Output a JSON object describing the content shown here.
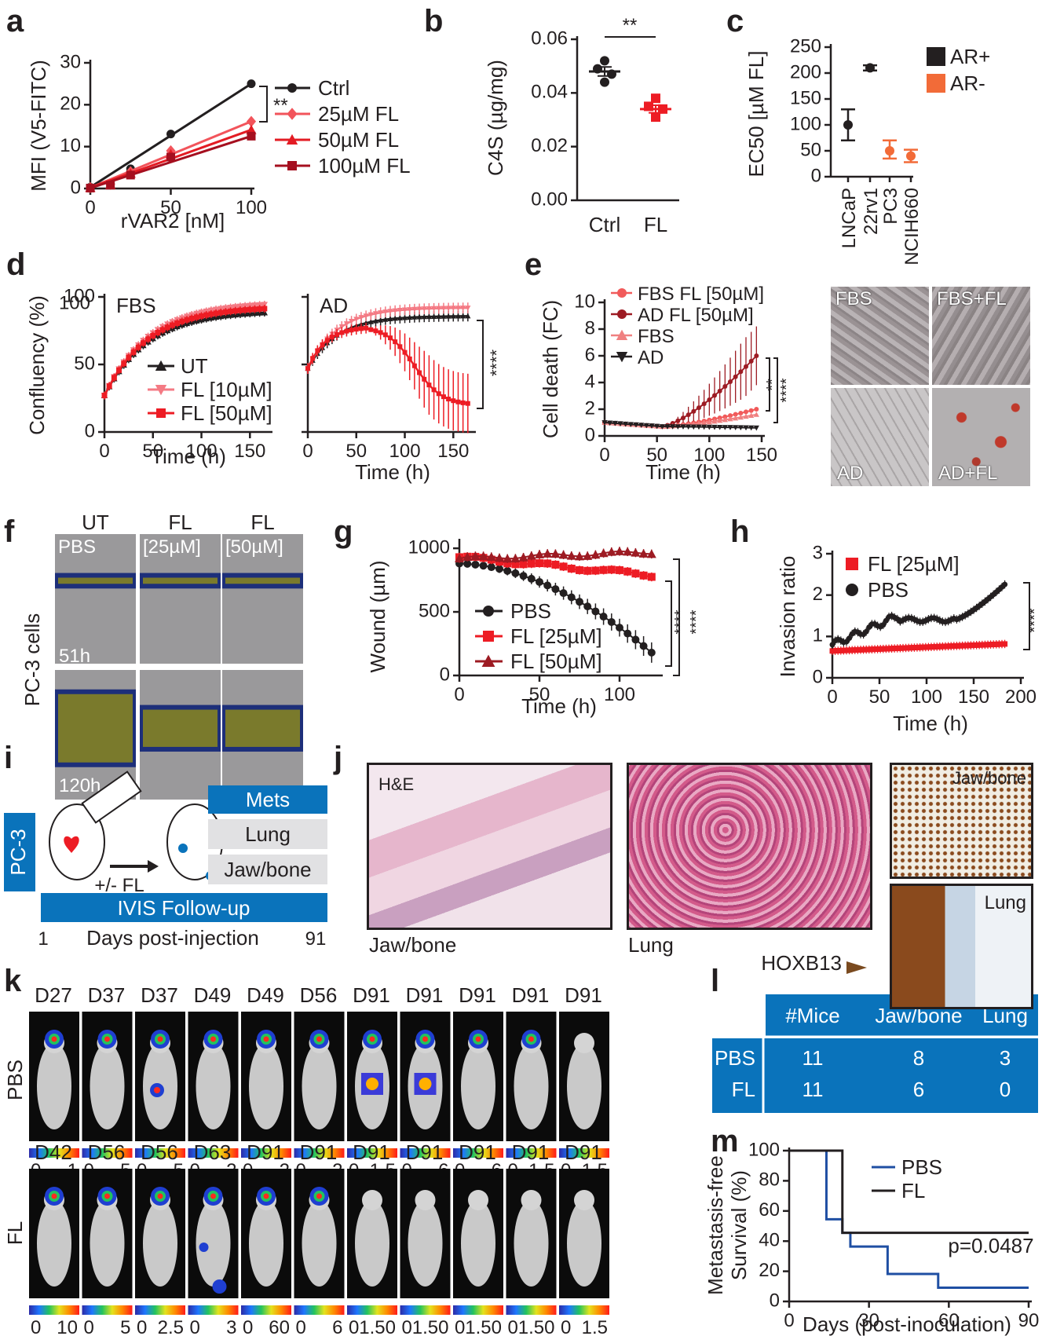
{
  "colors": {
    "black": "#231f20",
    "red": "#ed1c24",
    "pink": "#f47a84",
    "lightpink": "#f8a6a6",
    "darkred": "#9d1b23",
    "maroon": "#a50f1f",
    "orange": "#f26b38",
    "blue": "#1f4fa3",
    "cyan": "#0a73bb",
    "lightgray": "#e1e1e3"
  },
  "panel_labels": [
    "a",
    "b",
    "c",
    "d",
    "e",
    "f",
    "g",
    "h",
    "i",
    "j",
    "k",
    "l",
    "m"
  ],
  "chart_data": [
    {
      "id": "a",
      "type": "line",
      "xlabel": "rVAR2 [nM]",
      "ylabel": "MFI (V5-FITC)",
      "xlim": [
        0,
        100
      ],
      "ylim": [
        0,
        30
      ],
      "xticks": [
        0,
        50,
        100
      ],
      "yticks": [
        0,
        10,
        20,
        30
      ],
      "legend": "right",
      "significance": "**",
      "series": [
        {
          "name": "Ctrl",
          "x": [
            0,
            12.5,
            25,
            50,
            100
          ],
          "values": [
            0.3,
            1.2,
            4.7,
            13,
            25
          ],
          "marker": "circle",
          "color": "#231f20"
        },
        {
          "name": "25µM FL",
          "x": [
            0,
            12.5,
            25,
            50,
            100
          ],
          "values": [
            0.2,
            1,
            4,
            9,
            16
          ],
          "marker": "diamond",
          "color": "#f2545b"
        },
        {
          "name": "50µM FL",
          "x": [
            0,
            12.5,
            25,
            50,
            100
          ],
          "values": [
            0.2,
            0.9,
            3.6,
            8.2,
            14
          ],
          "marker": "triangle",
          "color": "#e31b23"
        },
        {
          "name": "100µM FL",
          "x": [
            0,
            12.5,
            25,
            50,
            100
          ],
          "values": [
            0.1,
            0.8,
            3.2,
            7.5,
            12.5
          ],
          "marker": "square",
          "color": "#a50f1f"
        }
      ]
    },
    {
      "id": "b",
      "type": "scatter",
      "ylabel": "C4S (µg/mg)",
      "categories": [
        "Ctrl",
        "FL"
      ],
      "ylim": [
        0,
        0.06
      ],
      "yticks": [
        "0.00",
        "0.02",
        "0.04",
        "0.06"
      ],
      "significance": "**",
      "series": [
        {
          "name": "Ctrl",
          "values": [
            0.052,
            0.049,
            0.047,
            0.044
          ],
          "mean": 0.048,
          "sem": 0.0017,
          "color": "#231f20"
        },
        {
          "name": "FL",
          "values": [
            0.038,
            0.035,
            0.034,
            0.031
          ],
          "mean": 0.034,
          "sem": 0.0014,
          "color": "#ed1c24"
        }
      ]
    },
    {
      "id": "c",
      "type": "scatter",
      "ylabel": "EC50 [µM FL]",
      "categories": [
        "LNCaP",
        "22rv1",
        "PC3",
        "NCIH660"
      ],
      "ylim": [
        0,
        250
      ],
      "yticks": [
        0,
        50,
        100,
        150,
        200,
        250
      ],
      "values": [
        100,
        210,
        50,
        40
      ],
      "err": [
        [
          70,
          130
        ],
        [
          205,
          215
        ],
        [
          35,
          70
        ],
        [
          28,
          52
        ]
      ],
      "groups": [
        "AR+",
        "AR+",
        "AR-",
        "AR-"
      ],
      "legend": [
        {
          "name": "AR+",
          "color": "#231f20"
        },
        {
          "name": "AR-",
          "color": "#f26b38"
        }
      ]
    },
    {
      "id": "d1",
      "type": "line",
      "title": "FBS",
      "xlabel": "Time (h)",
      "ylabel": "Confluency (%)",
      "xlim": [
        0,
        170
      ],
      "ylim": [
        0,
        100
      ],
      "xticks": [
        0,
        50,
        100,
        150
      ],
      "yticks": [
        0,
        50,
        100
      ],
      "series": [
        {
          "name": "UT",
          "shape": "plateau",
          "start": 27,
          "end": 90,
          "marker": "triangle",
          "color": "#231f20"
        },
        {
          "name": "FL [10µM]",
          "shape": "plateau",
          "start": 27,
          "end": 96,
          "marker": "invtriangle",
          "color": "#f47a84"
        },
        {
          "name": "FL [50µM]",
          "shape": "plateau",
          "start": 27,
          "end": 93,
          "marker": "square",
          "color": "#ed1c24"
        }
      ]
    },
    {
      "id": "d2",
      "type": "line",
      "title": "AD",
      "xlabel": "Time (h)",
      "xlim": [
        0,
        170
      ],
      "ylim": [
        0,
        100
      ],
      "xticks": [
        0,
        50,
        100,
        150
      ],
      "significance": "****",
      "series": [
        {
          "name": "UT",
          "shape": "plateau",
          "start": 47,
          "end": 86,
          "color": "#231f20"
        },
        {
          "name": "FL [10µM]",
          "shape": "plateau",
          "start": 47,
          "end": 92,
          "color": "#f47a84"
        },
        {
          "name": "FL [50µM]",
          "shape": "rise-fall",
          "start": 47,
          "peak": 78,
          "end": 20,
          "color": "#ed1c24"
        }
      ]
    },
    {
      "id": "e",
      "type": "line",
      "xlabel": "Time (h)",
      "ylabel": "Cell death (FC)",
      "xlim": [
        0,
        150
      ],
      "ylim": [
        0,
        10
      ],
      "xticks": [
        0,
        50,
        100,
        150
      ],
      "yticks": [
        0,
        2,
        4,
        6,
        8,
        10
      ],
      "significance": [
        "**",
        "****"
      ],
      "series": [
        {
          "name": "FBS FL [50µM]",
          "end": 2.0,
          "marker": "circle",
          "color": "#f15a5a"
        },
        {
          "name": "AD FL [50µM]",
          "end": 6.0,
          "marker": "circle",
          "color": "#9d1b23"
        },
        {
          "name": "FBS",
          "end": 1.6,
          "marker": "triangle",
          "color": "#f08080"
        },
        {
          "name": "AD",
          "end": 0.6,
          "marker": "invtriangle",
          "color": "#231f20"
        }
      ]
    },
    {
      "id": "g",
      "type": "line",
      "xlabel": "Time (h)",
      "ylabel": "Wound (µm)",
      "xlim": [
        0,
        125
      ],
      "ylim": [
        0,
        1050
      ],
      "xticks": [
        0,
        50,
        100
      ],
      "yticks": [
        0,
        500,
        1000
      ],
      "significance": [
        "****",
        "****"
      ],
      "series": [
        {
          "name": "PBS",
          "start": 880,
          "end": 180,
          "marker": "circle",
          "color": "#231f20"
        },
        {
          "name": "FL [25µM]",
          "start": 930,
          "end": 790,
          "marker": "square",
          "color": "#ed1c24"
        },
        {
          "name": "FL [50µM]",
          "start": 920,
          "end": 970,
          "marker": "triangle",
          "color": "#9d1b23"
        }
      ]
    },
    {
      "id": "h",
      "type": "line",
      "xlabel": "Time (h)",
      "ylabel": "Invasion ratio",
      "xlim": [
        0,
        200
      ],
      "ylim": [
        0,
        3
      ],
      "xticks": [
        0,
        50,
        100,
        150,
        200
      ],
      "yticks": [
        0,
        1,
        2,
        3
      ],
      "significance": "****",
      "series": [
        {
          "name": "FL [25µM]",
          "start": 0.65,
          "end": 0.82,
          "marker": "square",
          "color": "#ed1c24"
        },
        {
          "name": "PBS",
          "start": 0.8,
          "end": 2.3,
          "marker": "circle",
          "color": "#231f20"
        }
      ]
    },
    {
      "id": "m",
      "type": "line",
      "xlabel": "Days (post-inoculation)",
      "ylabel": "Metastasis-free Survival (%)",
      "xlim": [
        0,
        90
      ],
      "ylim": [
        0,
        100
      ],
      "xticks": [
        0,
        30,
        60,
        90
      ],
      "yticks": [
        0,
        20,
        40,
        60,
        80,
        100
      ],
      "annotation": "p=0.0487",
      "series": [
        {
          "name": "PBS",
          "x": [
            0,
            14,
            14,
            20,
            20,
            23,
            23,
            37,
            37,
            56,
            56,
            90
          ],
          "values": [
            100,
            100,
            54.5,
            54.5,
            45.5,
            45.5,
            36.4,
            36.4,
            18.2,
            18.2,
            9.1,
            9.1
          ],
          "color": "#1f4fa3"
        },
        {
          "name": "FL",
          "x": [
            0,
            20,
            20,
            90
          ],
          "values": [
            100,
            100,
            45.5,
            45.5
          ],
          "color": "#231f20"
        }
      ]
    }
  ],
  "panel_e_images": [
    "FBS",
    "FBS+FL",
    "AD",
    "AD+FL"
  ],
  "panel_f": {
    "columns": [
      "UT",
      "FL",
      "FL"
    ],
    "inner_labels": [
      "PBS",
      "[25µM]",
      "[50µM]"
    ],
    "time_labels": [
      "51h",
      "120h"
    ],
    "row_label": "PC-3 cells"
  },
  "panel_i": {
    "cell": "PC-3",
    "treatment": "+/- FL",
    "mets_header": "Mets",
    "mets": [
      "Lung",
      "Jaw/bone"
    ],
    "followup": "IVIS Follow-up",
    "day_start": "1",
    "day_end": "91",
    "days_label": "Days post-injection"
  },
  "panel_j": {
    "stain": "H&E",
    "captions": [
      "Jaw/bone",
      "Lung"
    ],
    "ihc_labels": [
      "Jaw/bone",
      "Lung"
    ],
    "marker": "HOXB13"
  },
  "panel_k": {
    "pbs_label": "PBS",
    "fl_label": "FL",
    "pbs_days": [
      "D27",
      "D37",
      "D37",
      "D49",
      "D49",
      "D56",
      "D91",
      "D91",
      "D91",
      "D91",
      "D91"
    ],
    "pbs_scale": [
      "0",
      "1",
      "0",
      "5",
      "0",
      "5",
      "0",
      "2",
      "0",
      "2",
      "0",
      "2",
      "0",
      "1.5",
      "0",
      "6",
      "0",
      "6",
      "0",
      "1.5",
      "0",
      "1.5"
    ],
    "pbs_signal": [
      1,
      1,
      2,
      1,
      1,
      1,
      3,
      3,
      1,
      1,
      0
    ],
    "fl_days": [
      "D42",
      "D56",
      "D56",
      "D63",
      "D91",
      "D91",
      "D91",
      "D91",
      "D91",
      "D91",
      "D91"
    ],
    "fl_scale": [
      "0",
      "10",
      "0",
      "5",
      "0",
      "2.5",
      "0",
      "3",
      "0",
      "60",
      "0",
      "6",
      "0",
      "1.50",
      "0",
      "1.50",
      "0",
      "1.50",
      "0",
      "1.50",
      "0",
      "1.5"
    ],
    "fl_signal": [
      1,
      1,
      1,
      4,
      1,
      1,
      0,
      0,
      0,
      0,
      0
    ]
  },
  "panel_l": {
    "headers": [
      "#Mice",
      "Jaw/bone",
      "Lung"
    ],
    "rows": [
      {
        "label": "PBS",
        "cells": [
          "11",
          "8",
          "3"
        ]
      },
      {
        "label": "FL",
        "cells": [
          "11",
          "6",
          "0"
        ]
      }
    ]
  }
}
